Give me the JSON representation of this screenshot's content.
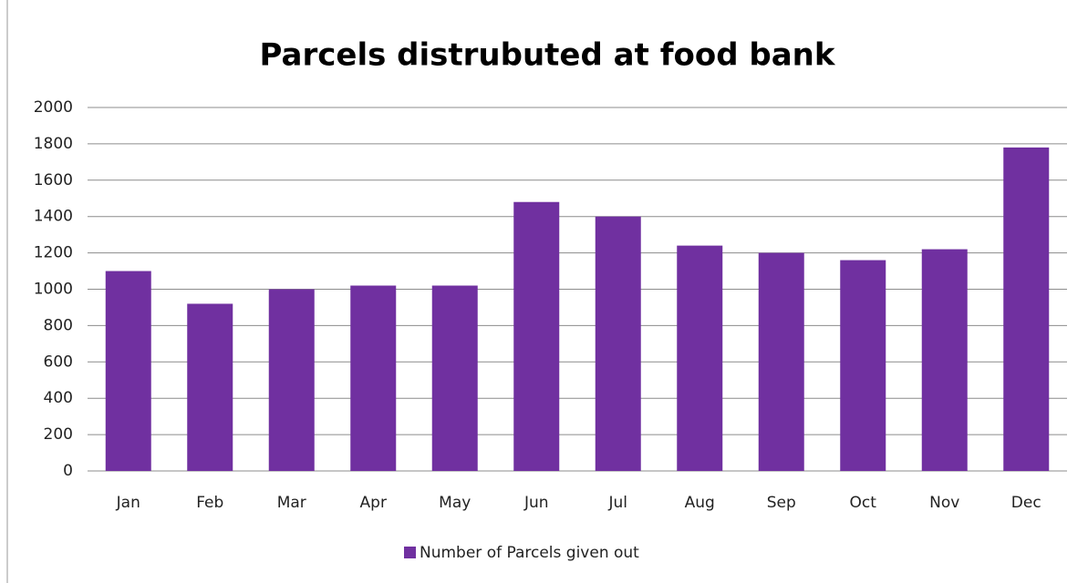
{
  "chart_data": {
    "type": "bar",
    "title": "Parcels distrubuted at food bank",
    "categories": [
      "Jan",
      "Feb",
      "Mar",
      "Apr",
      "May",
      "Jun",
      "Jul",
      "Aug",
      "Sep",
      "Oct",
      "Nov",
      "Dec"
    ],
    "series": [
      {
        "name": "Number of Parcels given out",
        "color": "#7030a0",
        "values": [
          1100,
          920,
          1000,
          1020,
          1020,
          1480,
          1400,
          1240,
          1200,
          1160,
          1220,
          1780
        ]
      }
    ],
    "ylim": [
      0,
      2000
    ],
    "yticks": [
      0,
      200,
      400,
      600,
      800,
      1000,
      1200,
      1400,
      1600,
      1800,
      2000
    ],
    "grid": true,
    "legend": "bottom"
  }
}
